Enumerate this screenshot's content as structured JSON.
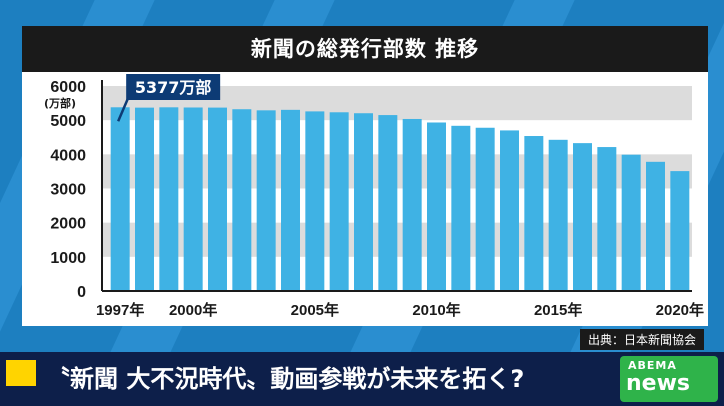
{
  "chart_data": {
    "type": "bar",
    "title": "新聞の総発行部数 推移",
    "ylabel": "(万部)",
    "ylim": [
      0,
      6000
    ],
    "yticks": [
      0,
      1000,
      2000,
      3000,
      4000,
      5000,
      6000
    ],
    "categories": [
      "1997",
      "1998",
      "1999",
      "2000",
      "2001",
      "2002",
      "2003",
      "2004",
      "2005",
      "2006",
      "2007",
      "2008",
      "2009",
      "2010",
      "2011",
      "2012",
      "2013",
      "2014",
      "2015",
      "2016",
      "2017",
      "2018",
      "2019",
      "2020"
    ],
    "xtick_labels": [
      {
        "category": "1997",
        "label": "1997年"
      },
      {
        "category": "2000",
        "label": "2000年"
      },
      {
        "category": "2005",
        "label": "2005年"
      },
      {
        "category": "2010",
        "label": "2010年"
      },
      {
        "category": "2015",
        "label": "2015年"
      },
      {
        "category": "2020",
        "label": "2020年"
      }
    ],
    "values": [
      5377,
      5367,
      5376,
      5371,
      5368,
      5320,
      5288,
      5302,
      5257,
      5231,
      5203,
      5149,
      5035,
      4932,
      4835,
      4778,
      4700,
      4536,
      4425,
      4328,
      4213,
      3990,
      3781,
      3509
    ],
    "annotation": {
      "category": "1997",
      "text": "5377万部"
    },
    "bar_color": "#3fb2e4",
    "band_color": "#dcdcdc",
    "grid": "alternating bands"
  },
  "source": "出典：日本新聞協会",
  "caption": "〝新聞 大不況時代〟動画参戦が未来を拓く?",
  "logo": {
    "line1": "ABEMA",
    "line2": "news"
  }
}
